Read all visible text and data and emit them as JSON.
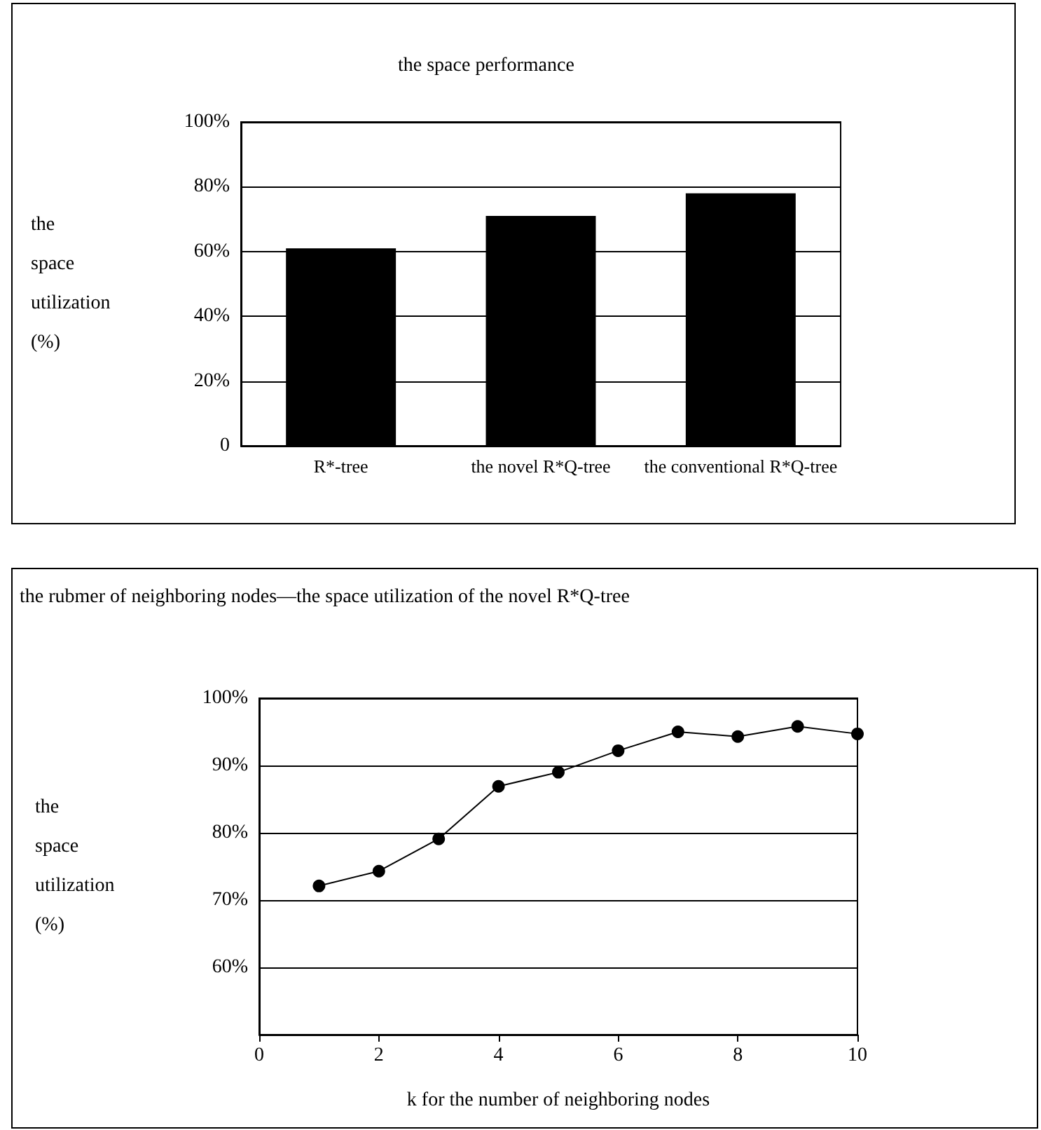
{
  "chart_data": [
    {
      "type": "bar",
      "title": "the space performance",
      "ylabel": "the space utilization (%)",
      "categories": [
        "R*-tree",
        "the novel R*Q-tree",
        "the conventional R*Q-tree"
      ],
      "series": [
        {
          "color": "#000000",
          "values": [
            61,
            71,
            78
          ]
        }
      ],
      "ylim": [
        0,
        100
      ],
      "yticks": [
        {
          "value": 0,
          "label": "0"
        },
        {
          "value": 20,
          "label": "20%"
        },
        {
          "value": 40,
          "label": "40%"
        },
        {
          "value": 60,
          "label": "60%"
        },
        {
          "value": 80,
          "label": "80%"
        },
        {
          "value": 100,
          "label": "100%"
        }
      ],
      "grid": "y"
    },
    {
      "type": "line",
      "title": "the rubmer of neighboring nodes—the space utilization of the novel R*Q-tree",
      "xlabel": "k for the number of neighboring nodes",
      "ylabel": "the space utilization (%)",
      "x": [
        1,
        2,
        3,
        4,
        5,
        6,
        7,
        8,
        9,
        10
      ],
      "series": [
        {
          "color": "#000000",
          "values": [
            72.1,
            74.3,
            79.1,
            86.9,
            89.0,
            92.2,
            95.0,
            94.3,
            95.8,
            94.7
          ]
        }
      ],
      "xlim": [
        0,
        10
      ],
      "xticks": [
        0,
        2,
        4,
        6,
        8,
        10
      ],
      "ylim": [
        50,
        100
      ],
      "yticks": [
        {
          "value": 60,
          "label": "60%"
        },
        {
          "value": 70,
          "label": "70%"
        },
        {
          "value": 80,
          "label": "80%"
        },
        {
          "value": 90,
          "label": "90%"
        },
        {
          "value": 100,
          "label": "100%"
        }
      ],
      "grid": "y",
      "marker": "circle",
      "line_style": "solid"
    }
  ]
}
